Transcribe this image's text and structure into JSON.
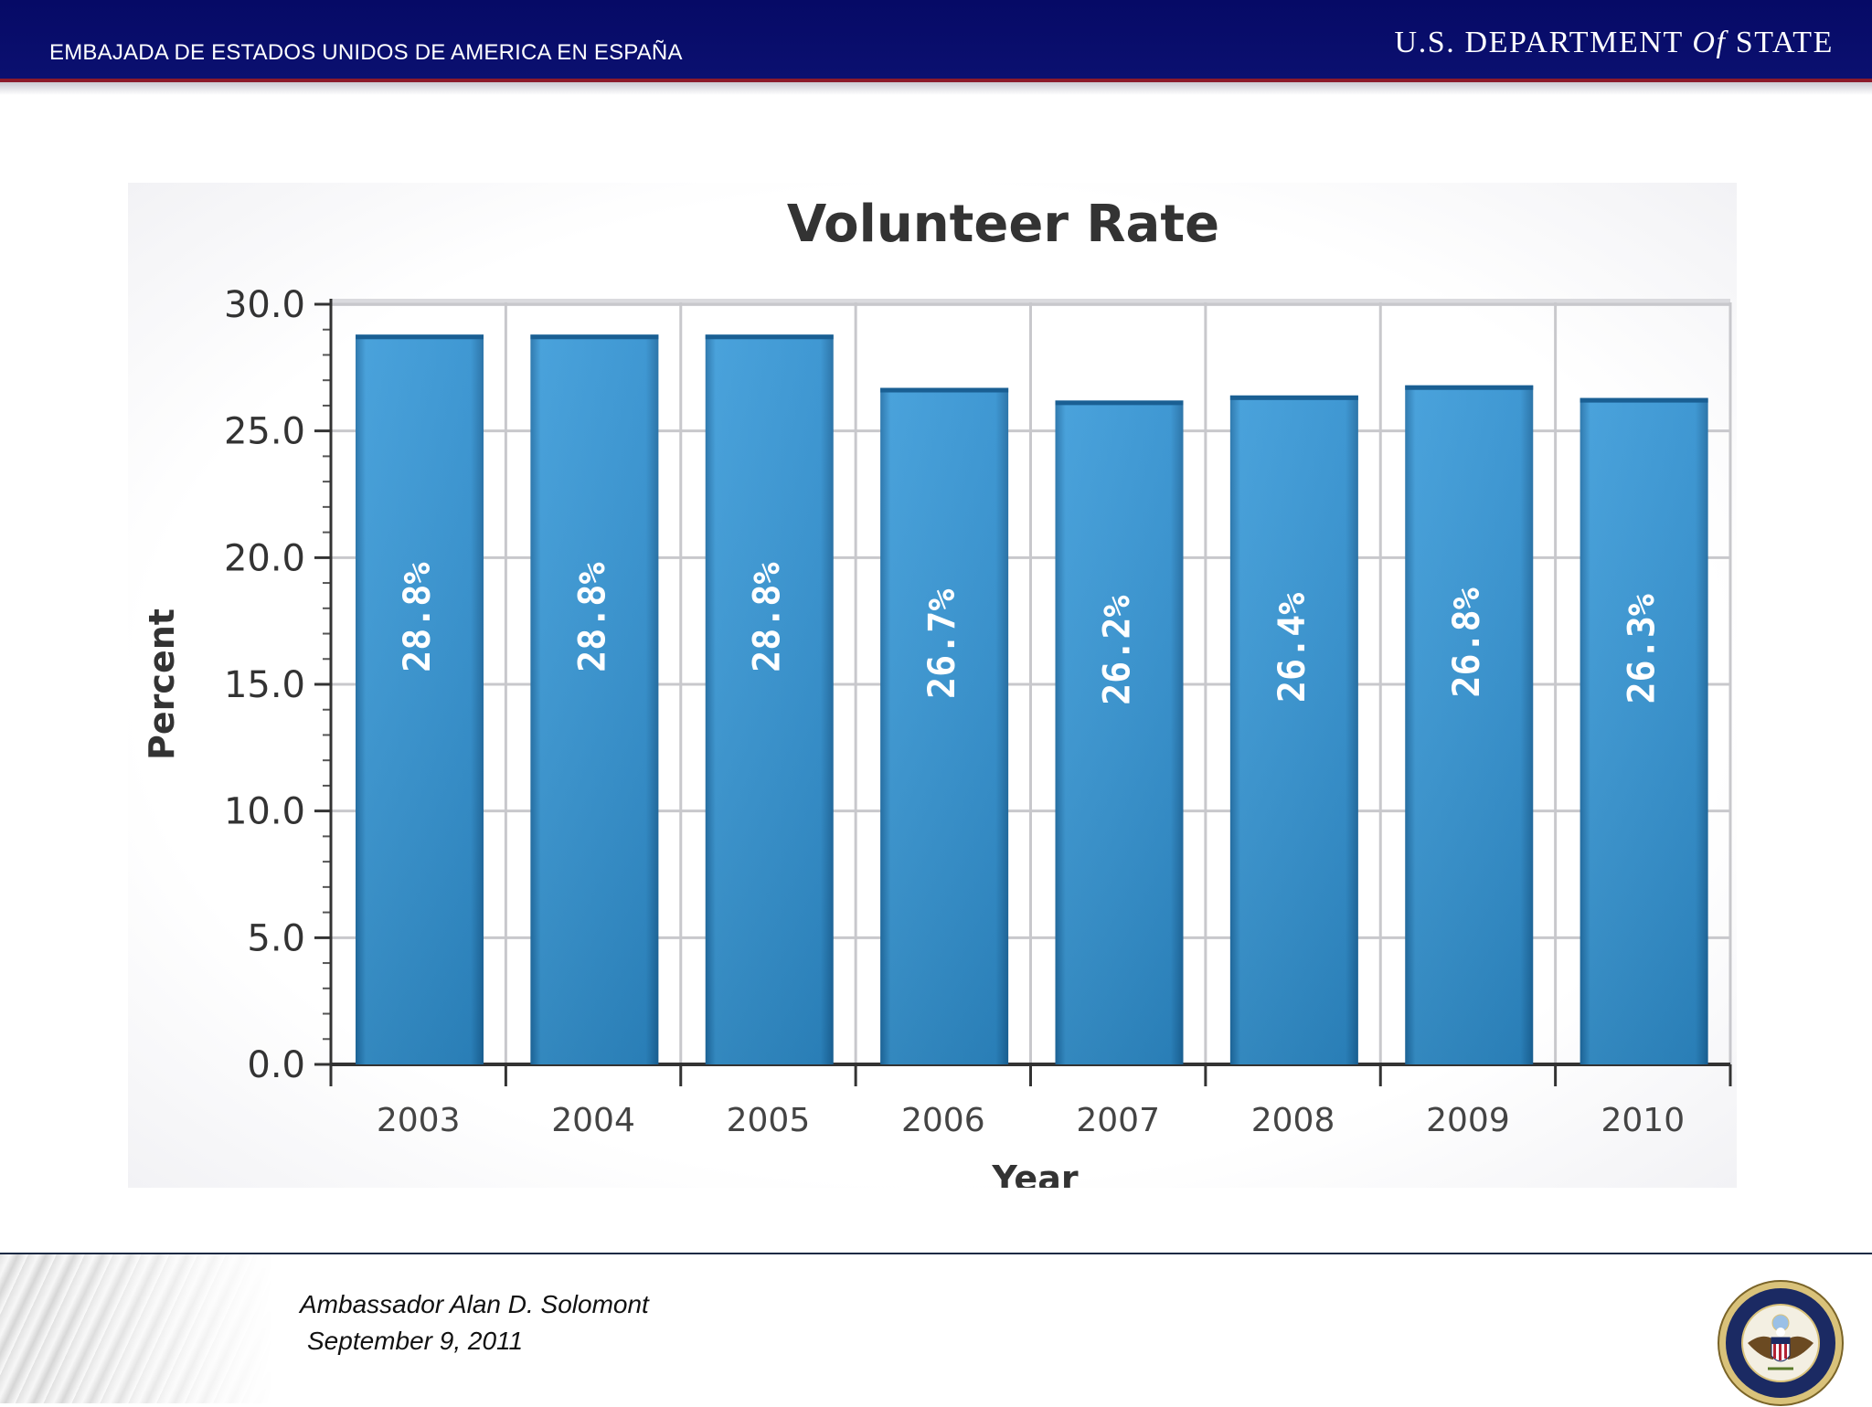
{
  "header": {
    "embassy_text": "EMBAJADA DE ESTADOS UNIDOS DE AMERICA EN ESPAÑA",
    "dept_pre": "U.S. DEPARTMENT",
    "dept_of": "Of",
    "dept_post": "STATE",
    "bar_color": "#0b1070",
    "accent_color": "#8c1a2a"
  },
  "chart_data": {
    "type": "bar",
    "title": "Volunteer Rate",
    "xlabel": "Year",
    "ylabel": "Percent",
    "categories": [
      "2003",
      "2004",
      "2005",
      "2006",
      "2007",
      "2008",
      "2009",
      "2010"
    ],
    "values": [
      28.8,
      28.8,
      28.8,
      26.7,
      26.2,
      26.4,
      26.8,
      26.3
    ],
    "data_labels": [
      "28.8%",
      "28.8%",
      "28.8%",
      "26.7%",
      "26.2%",
      "26.4%",
      "26.8%",
      "26.3%"
    ],
    "ylim": [
      0,
      30
    ],
    "yticks": [
      0,
      5,
      10,
      15,
      20,
      25,
      30
    ],
    "ytick_labels": [
      "0.0",
      "5.0",
      "10.0",
      "15.0",
      "20.0",
      "25.0",
      "30.0"
    ],
    "grid": true,
    "bar_color": "#2f8fcf"
  },
  "footer": {
    "ambassador": "Ambassador Alan D. Solomont",
    "date": "September 9, 2011",
    "seal_icon": "department-of-state-seal-icon"
  }
}
